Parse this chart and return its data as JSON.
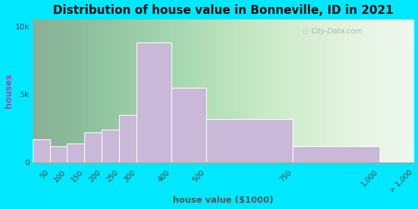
{
  "title": "Distribution of house value in Bonneville, ID in 2021",
  "xlabel": "house value ($1000)",
  "ylabel": "houses",
  "bin_edges": [
    0,
    50,
    100,
    150,
    200,
    250,
    300,
    400,
    500,
    750,
    1000,
    1100
  ],
  "bin_centers_labels": [
    "50",
    "100",
    "150",
    "200",
    "250",
    "300",
    "400",
    "500",
    "750",
    "1,000",
    "> 1,000"
  ],
  "xtick_positions": [
    50,
    100,
    150,
    200,
    250,
    300,
    400,
    500,
    750,
    1000,
    1100
  ],
  "bar_values": [
    1700,
    1200,
    1400,
    2200,
    2400,
    3500,
    8800,
    5500,
    3200,
    1200,
    80
  ],
  "bar_color": "#c9b8d8",
  "bar_edge_color": "#ffffff",
  "background_outer": "#00e8ff",
  "yticks": [
    0,
    5000,
    10000
  ],
  "ytick_labels": [
    "0",
    "5k",
    "10k"
  ],
  "title_fontsize": 12,
  "axis_label_fontsize": 9,
  "watermark_text": "City-Data.com",
  "ylim_max": 10500
}
